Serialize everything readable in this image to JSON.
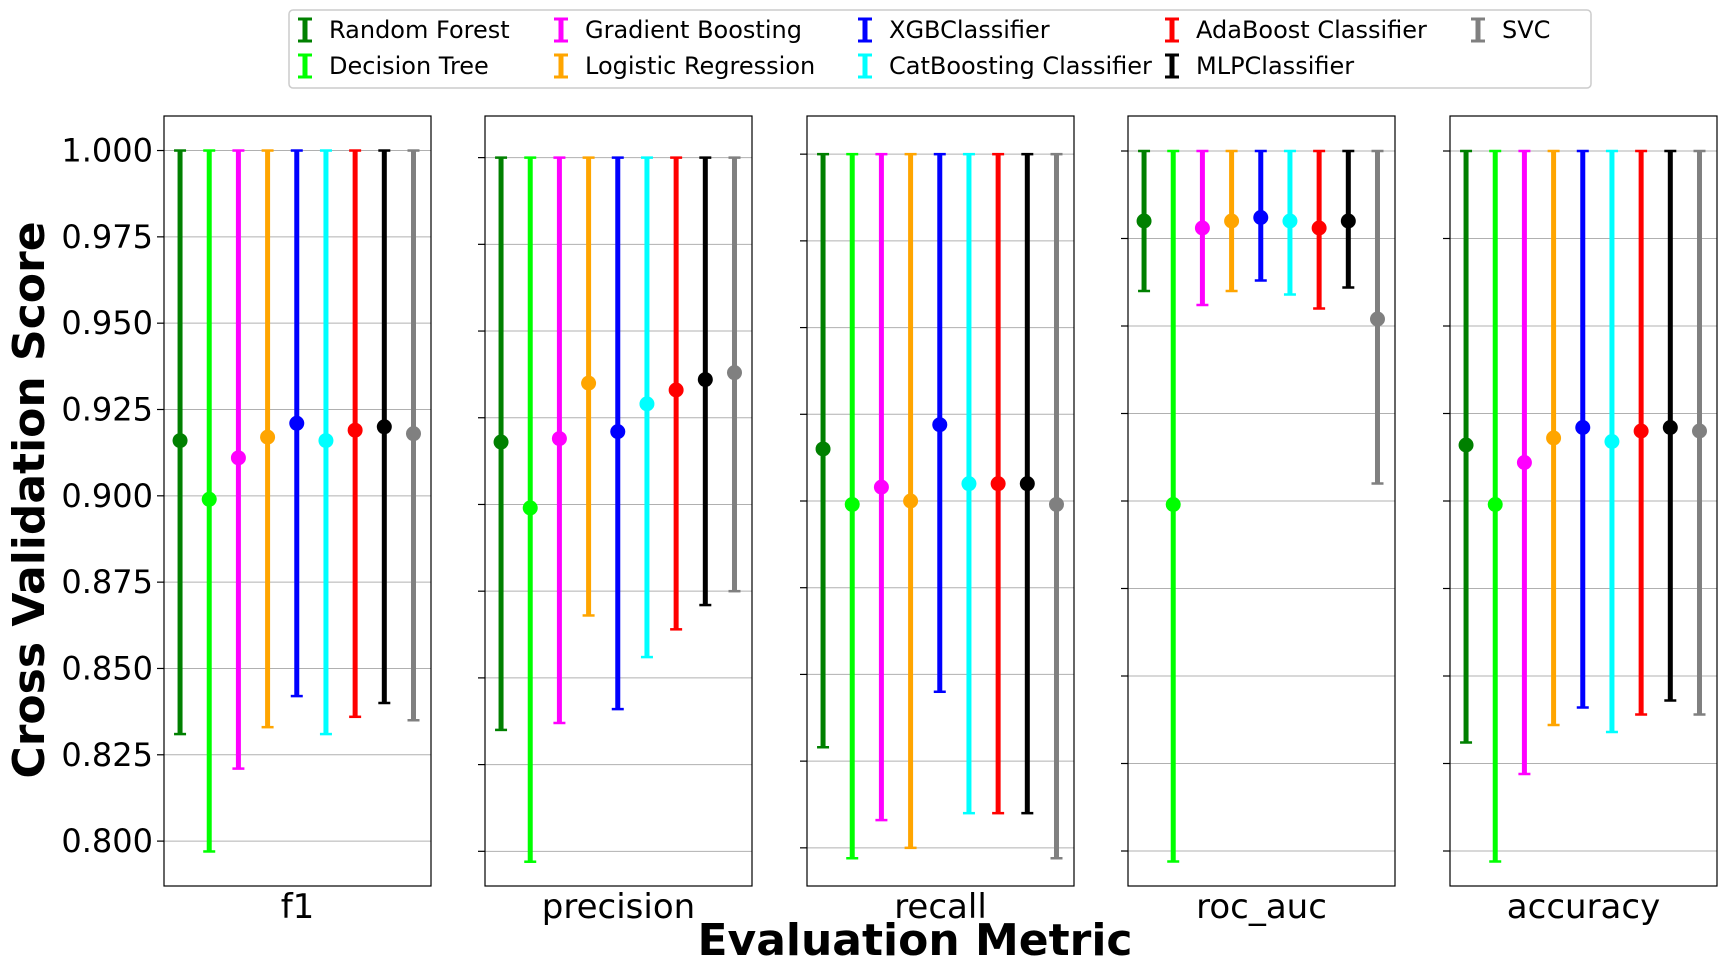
{
  "figure": {
    "xlabel": "Evaluation Metric",
    "ylabel": "Cross Validation Score"
  },
  "chart_data": {
    "type": "errorbar",
    "ylim": [
      0.787,
      1.01
    ],
    "yticks": [
      0.8,
      0.825,
      0.85,
      0.875,
      0.9,
      0.925,
      0.95,
      0.975,
      1.0
    ],
    "ytick_labels": [
      "0.800",
      "0.825",
      "0.850",
      "0.875",
      "0.900",
      "0.925",
      "0.950",
      "0.975",
      "1.000"
    ],
    "grid": "horizontal",
    "legend_position": "top-center",
    "models": [
      {
        "name": "Random Forest",
        "color": "#008000"
      },
      {
        "name": "Decision Tree",
        "color": "#00ff00"
      },
      {
        "name": "Gradient Boosting",
        "color": "#ff00ff"
      },
      {
        "name": "Logistic Regression",
        "color": "#ffa500"
      },
      {
        "name": "XGBClassifier",
        "color": "#0000ff"
      },
      {
        "name": "CatBoosting Classifier",
        "color": "#00ffff"
      },
      {
        "name": "AdaBoost Classifier",
        "color": "#ff0000"
      },
      {
        "name": "MLPClassifier",
        "color": "#000000"
      },
      {
        "name": "SVC",
        "color": "#808080"
      }
    ],
    "panels": [
      {
        "metric": "f1",
        "ylim": [
          0.787,
          1.01
        ],
        "points": [
          {
            "mean": 0.916,
            "low": 0.831,
            "high": 1.0
          },
          {
            "mean": 0.899,
            "low": 0.797,
            "high": 1.0
          },
          {
            "mean": 0.911,
            "low": 0.821,
            "high": 1.0
          },
          {
            "mean": 0.917,
            "low": 0.833,
            "high": 1.0
          },
          {
            "mean": 0.921,
            "low": 0.842,
            "high": 1.0
          },
          {
            "mean": 0.916,
            "low": 0.831,
            "high": 1.0
          },
          {
            "mean": 0.919,
            "low": 0.836,
            "high": 1.0
          },
          {
            "mean": 0.92,
            "low": 0.84,
            "high": 1.0
          },
          {
            "mean": 0.918,
            "low": 0.835,
            "high": 1.0
          }
        ]
      },
      {
        "metric": "precision",
        "ylim": [
          0.79,
          1.012
        ],
        "points": [
          {
            "mean": 0.918,
            "low": 0.835,
            "high": 1.0
          },
          {
            "mean": 0.899,
            "low": 0.797,
            "high": 1.0
          },
          {
            "mean": 0.919,
            "low": 0.837,
            "high": 1.0
          },
          {
            "mean": 0.935,
            "low": 0.868,
            "high": 1.0
          },
          {
            "mean": 0.921,
            "low": 0.841,
            "high": 1.0
          },
          {
            "mean": 0.929,
            "low": 0.856,
            "high": 1.0
          },
          {
            "mean": 0.933,
            "low": 0.864,
            "high": 1.0
          },
          {
            "mean": 0.936,
            "low": 0.871,
            "high": 1.0
          },
          {
            "mean": 0.938,
            "low": 0.875,
            "high": 1.0
          }
        ]
      },
      {
        "metric": "recall",
        "ylim": [
          0.789,
          1.011
        ],
        "points": [
          {
            "mean": 0.915,
            "low": 0.829,
            "high": 1.0
          },
          {
            "mean": 0.899,
            "low": 0.797,
            "high": 1.0
          },
          {
            "mean": 0.904,
            "low": 0.808,
            "high": 1.0
          },
          {
            "mean": 0.9,
            "low": 0.8,
            "high": 1.0
          },
          {
            "mean": 0.922,
            "low": 0.845,
            "high": 1.0
          },
          {
            "mean": 0.905,
            "low": 0.81,
            "high": 1.0
          },
          {
            "mean": 0.905,
            "low": 0.81,
            "high": 1.0
          },
          {
            "mean": 0.905,
            "low": 0.81,
            "high": 1.0
          },
          {
            "mean": 0.899,
            "low": 0.797,
            "high": 1.0
          }
        ]
      },
      {
        "metric": "roc_auc",
        "ylim": [
          0.79,
          1.01
        ],
        "points": [
          {
            "mean": 0.98,
            "low": 0.96,
            "high": 1.0
          },
          {
            "mean": 0.899,
            "low": 0.797,
            "high": 1.0
          },
          {
            "mean": 0.978,
            "low": 0.956,
            "high": 1.0
          },
          {
            "mean": 0.98,
            "low": 0.96,
            "high": 1.0
          },
          {
            "mean": 0.981,
            "low": 0.963,
            "high": 1.0
          },
          {
            "mean": 0.98,
            "low": 0.959,
            "high": 1.0
          },
          {
            "mean": 0.978,
            "low": 0.955,
            "high": 1.0
          },
          {
            "mean": 0.98,
            "low": 0.961,
            "high": 1.0
          },
          {
            "mean": 0.952,
            "low": 0.905,
            "high": 1.0
          }
        ]
      },
      {
        "metric": "accuracy",
        "ylim": [
          0.79,
          1.01
        ],
        "points": [
          {
            "mean": 0.916,
            "low": 0.831,
            "high": 1.0
          },
          {
            "mean": 0.899,
            "low": 0.797,
            "high": 1.0
          },
          {
            "mean": 0.911,
            "low": 0.822,
            "high": 1.0
          },
          {
            "mean": 0.918,
            "low": 0.836,
            "high": 1.0
          },
          {
            "mean": 0.921,
            "low": 0.841,
            "high": 1.0
          },
          {
            "mean": 0.917,
            "low": 0.834,
            "high": 1.0
          },
          {
            "mean": 0.92,
            "low": 0.839,
            "high": 1.0
          },
          {
            "mean": 0.921,
            "low": 0.843,
            "high": 1.0
          },
          {
            "mean": 0.92,
            "low": 0.839,
            "high": 1.0
          }
        ]
      }
    ]
  }
}
